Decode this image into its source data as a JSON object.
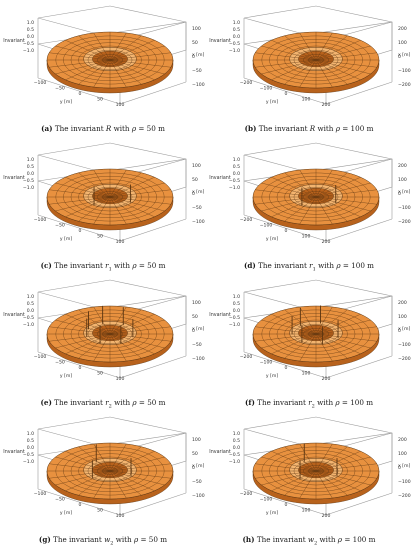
{
  "panels": [
    {
      "id": "a",
      "tag": "(a)",
      "text_before": "The invariant ",
      "symbol": "R",
      "sub": "",
      "text_after": " with ",
      "rho": "ρ",
      "eq": " = 50 m",
      "axis_y": "y [m]",
      "axis_x": "x [m]",
      "axis_z": "Invariant",
      "z_ticks": [
        "1.0",
        "0.5",
        "0.0",
        "−0.5",
        "−1.0"
      ],
      "y_ticks": [
        "−100",
        "−50",
        "0",
        "50",
        "100"
      ],
      "x_ticks": [
        "−100",
        "−50",
        "0",
        "50",
        "100"
      ],
      "spikes": []
    },
    {
      "id": "b",
      "tag": "(b)",
      "text_before": "The invariant ",
      "symbol": "R",
      "sub": "",
      "text_after": " with ",
      "rho": "ρ",
      "eq": " = 100 m",
      "axis_y": "y [m]",
      "axis_x": "x [m]",
      "axis_z": "Invariant",
      "z_ticks": [
        "1.0",
        "0.5",
        "0.0",
        "−0.5",
        "−1.0"
      ],
      "y_ticks": [
        "−200",
        "−100",
        "0",
        "100",
        "200"
      ],
      "x_ticks": [
        "−200",
        "−100",
        "0",
        "100",
        "200"
      ],
      "spikes": []
    },
    {
      "id": "c",
      "tag": "(c)",
      "text_before": "The invariant ",
      "symbol": "r",
      "sub": "1",
      "text_after": " with ",
      "rho": "ρ",
      "eq": " = 50 m",
      "axis_y": "y [m]",
      "axis_x": "x [m]",
      "axis_z": "Invariant",
      "z_ticks": [
        "1.0",
        "0.5",
        "0.0",
        "−0.5",
        "−1.0"
      ],
      "y_ticks": [
        "−100",
        "−50",
        "0",
        "50",
        "100"
      ],
      "x_ticks": [
        "−100",
        "−50",
        "0",
        "50",
        "100"
      ],
      "spikes": [
        0.55,
        2.3
      ]
    },
    {
      "id": "d",
      "tag": "(d)",
      "text_before": "The invariant ",
      "symbol": "r",
      "sub": "1",
      "text_after": " with ",
      "rho": "ρ",
      "eq": " = 100 m",
      "axis_y": "y [m]",
      "axis_x": "x [m]",
      "axis_z": "Invariant",
      "z_ticks": [
        "1.0",
        "0.5",
        "0.0",
        "−0.5",
        "−1.0"
      ],
      "y_ticks": [
        "−200",
        "−100",
        "0",
        "100",
        "200"
      ],
      "x_ticks": [
        "−200",
        "−100",
        "0",
        "100",
        "200"
      ],
      "spikes": [
        0.6,
        2.2
      ]
    },
    {
      "id": "e",
      "tag": "(e)",
      "text_before": "The invariant ",
      "symbol": "r",
      "sub": "2",
      "text_after": " with ",
      "rho": "ρ",
      "eq": " = 50 m",
      "axis_y": "y [m]",
      "axis_x": "x [m]",
      "axis_z": "Invariant",
      "z_ticks": [
        "1.0",
        "0.5",
        "0.0",
        "−0.5",
        "−1.0"
      ],
      "y_ticks": [
        "−100",
        "−50",
        "0",
        "50",
        "100"
      ],
      "x_ticks": [
        "−100",
        "−50",
        "0",
        "50",
        "100"
      ],
      "spikes": [
        0.3,
        1.1,
        2.0,
        2.9,
        3.6,
        4.4,
        5.3
      ]
    },
    {
      "id": "f",
      "tag": "(f)",
      "text_before": "The invariant ",
      "symbol": "r",
      "sub": "2",
      "text_after": " with ",
      "rho": "ρ",
      "eq": " = 100 m",
      "axis_y": "y [m]",
      "axis_x": "x [m]",
      "axis_z": "Invariant",
      "z_ticks": [
        "1.0",
        "0.5",
        "0.0",
        "−0.5",
        "−1.0"
      ],
      "y_ticks": [
        "−200",
        "−100",
        "0",
        "100",
        "200"
      ],
      "x_ticks": [
        "−200",
        "−100",
        "0",
        "100",
        "200"
      ],
      "spikes": [
        0.4,
        1.3,
        2.2,
        3.1,
        4.0,
        4.9
      ]
    },
    {
      "id": "g",
      "tag": "(g)",
      "text_before": "The invariant ",
      "symbol": "w",
      "sub": "2",
      "text_after": " with ",
      "rho": "ρ",
      "eq": " = 50 m",
      "axis_y": "y [m]",
      "axis_x": "x [m]",
      "axis_z": "Invariant",
      "z_ticks": [
        "1.0",
        "0.5",
        "0.0",
        "−0.5",
        "−1.0"
      ],
      "y_ticks": [
        "−100",
        "−50",
        "0",
        "50",
        "100"
      ],
      "x_ticks": [
        "−100",
        "−50",
        "0",
        "50",
        "100"
      ],
      "spikes": [
        0.5,
        2.4,
        4.1
      ]
    },
    {
      "id": "h",
      "tag": "(h)",
      "text_before": "The invariant ",
      "symbol": "w",
      "sub": "2",
      "text_after": " with ",
      "rho": "ρ",
      "eq": " = 100 m",
      "axis_y": "y [m]",
      "axis_x": "x [m]",
      "axis_z": "Invariant",
      "z_ticks": [
        "1.0",
        "0.5",
        "0.0",
        "−0.5",
        "−1.0"
      ],
      "y_ticks": [
        "−200",
        "−100",
        "0",
        "100",
        "200"
      ],
      "x_ticks": [
        "−200",
        "−100",
        "0",
        "100",
        "200"
      ],
      "spikes": [
        0.5,
        2.3,
        4.2
      ]
    }
  ],
  "colors": {
    "surface": "#e8913f",
    "surface_light": "#f3b46f",
    "surface_dark": "#b8621c",
    "grid": "#5a3410",
    "box": "#9a9a9a"
  }
}
